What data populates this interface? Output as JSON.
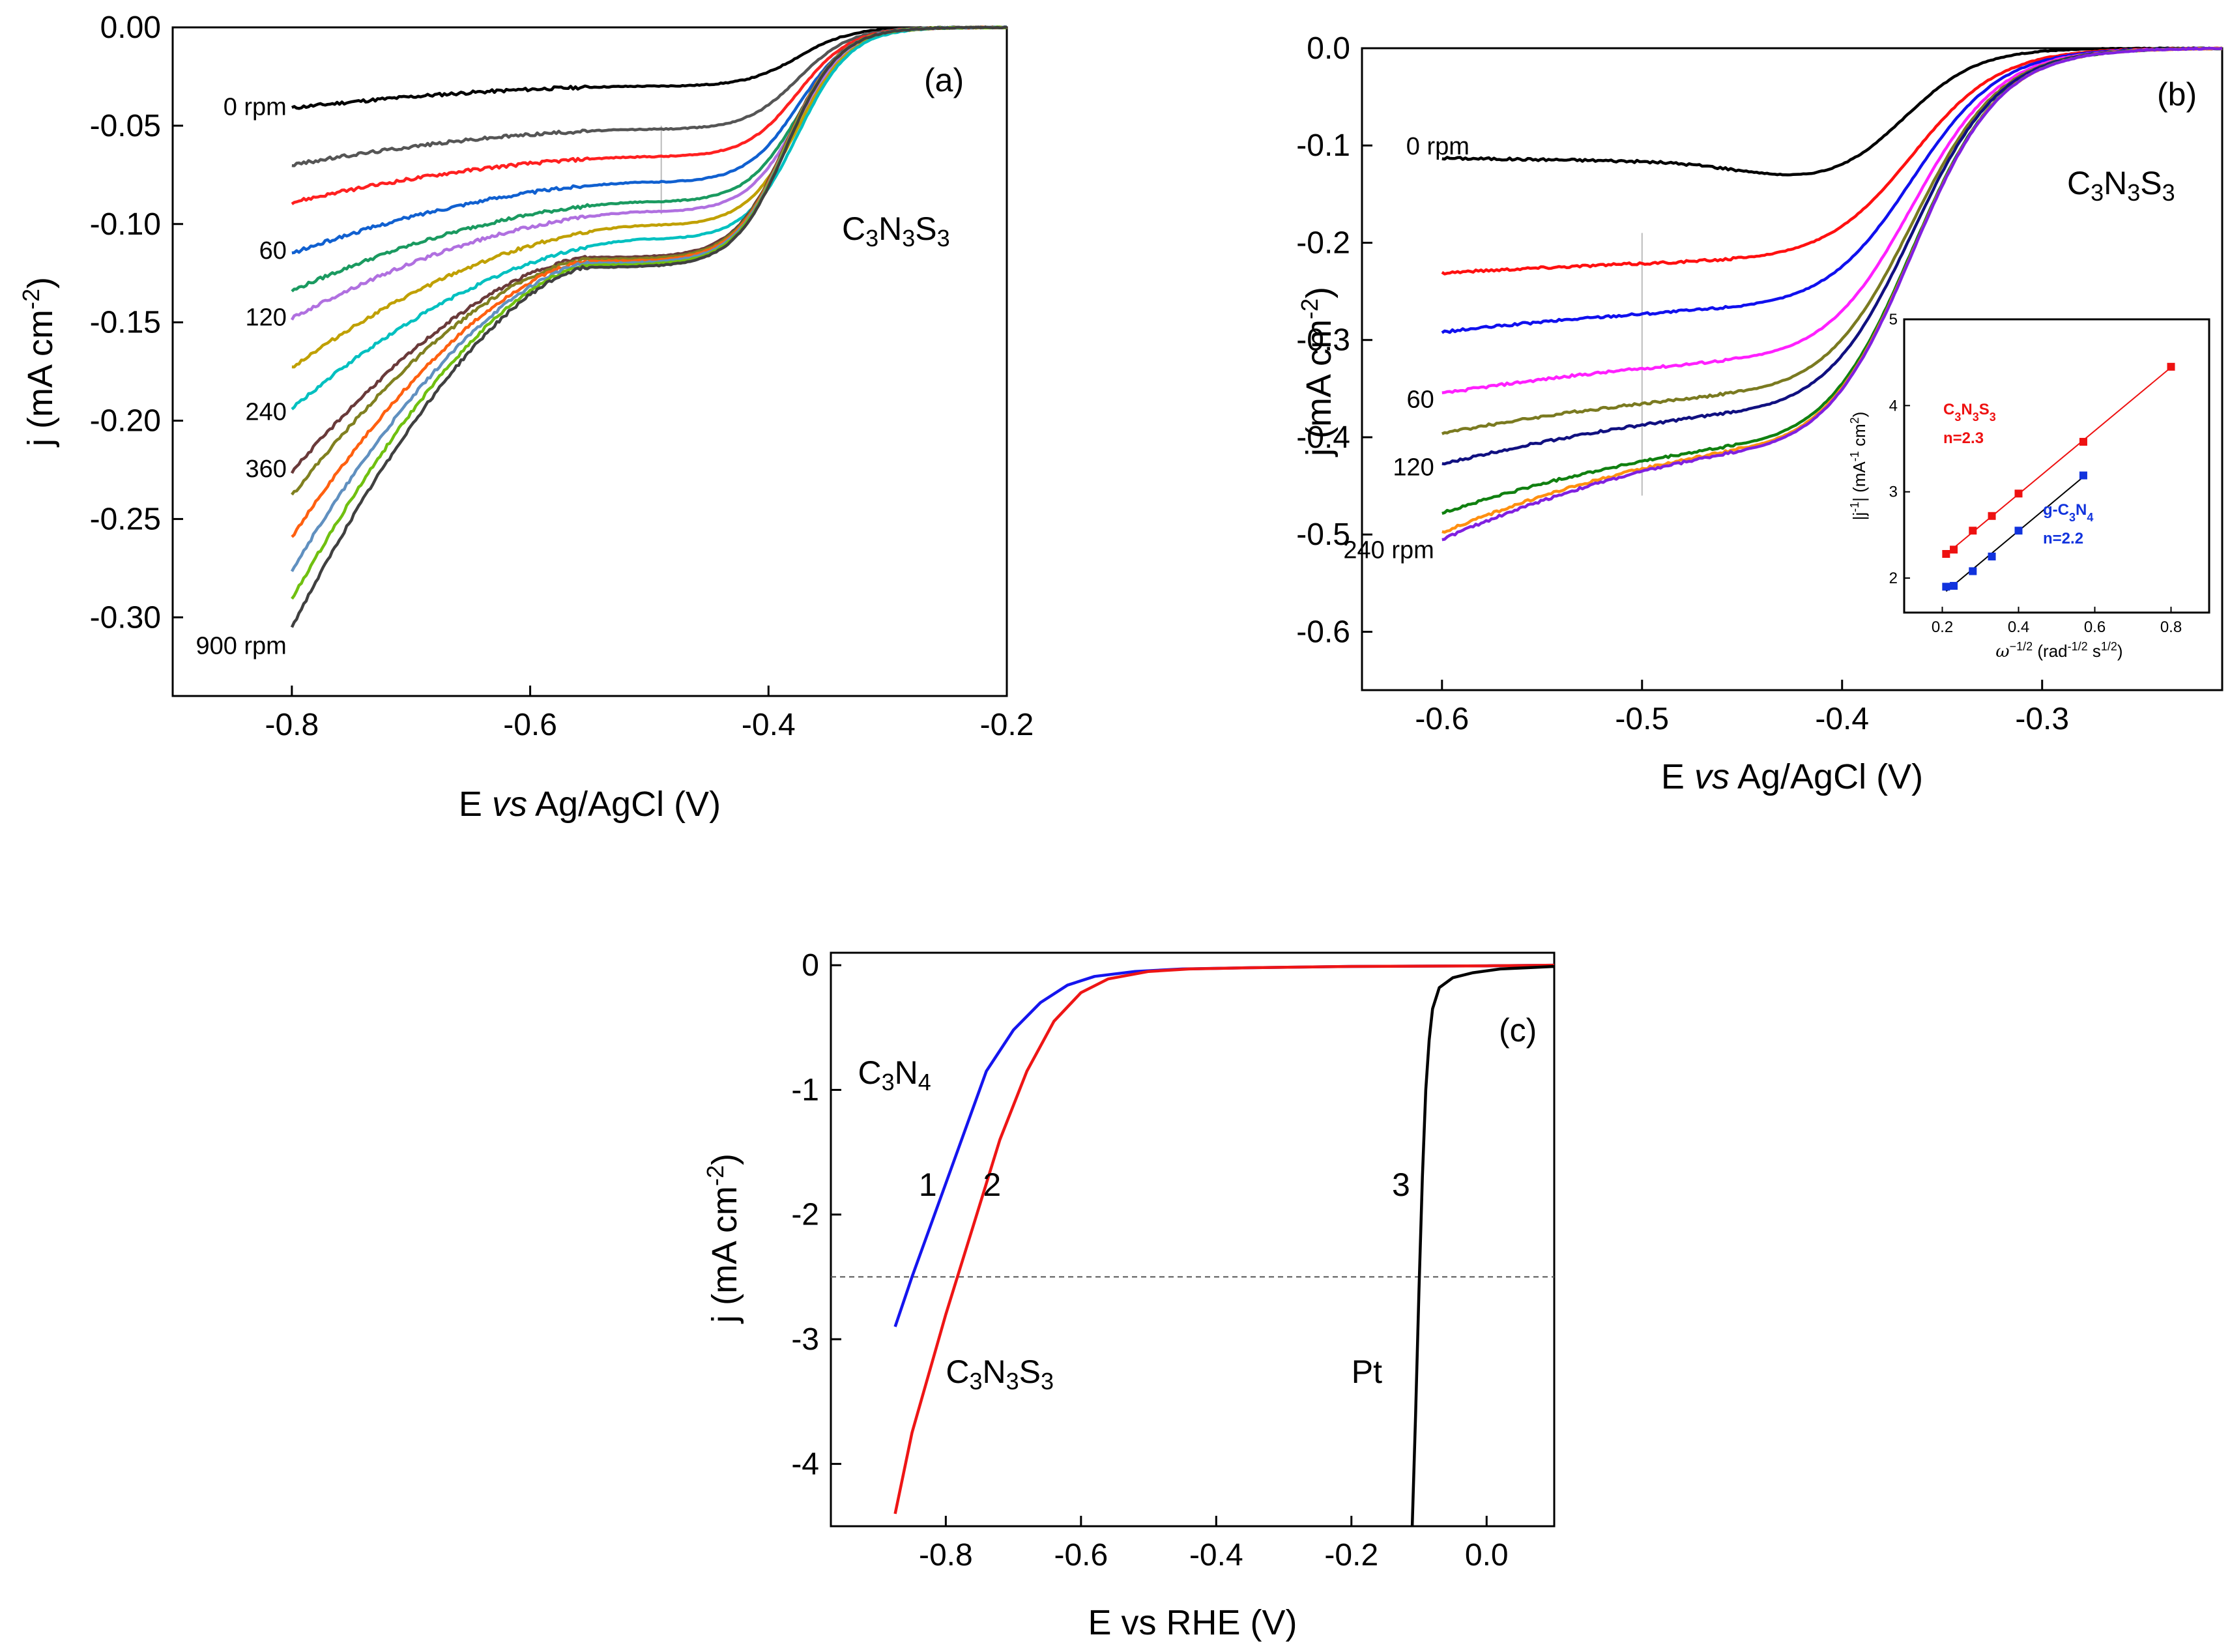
{
  "chart_data": [
    {
      "id": "a",
      "type": "line",
      "panel_label": "(a)",
      "title": "",
      "xlabel_parts": [
        "E ",
        "vs",
        " Ag/AgCl (V)"
      ],
      "ylabel": "j (mA cm",
      "ylabel_sup": "-2",
      "ylabel_close": ")",
      "xlim": [
        -0.9,
        -0.2
      ],
      "ylim": [
        -0.34,
        0.0
      ],
      "xticks": [
        -0.8,
        -0.6,
        -0.4,
        -0.2
      ],
      "xtick_labels": [
        "-0.8",
        "-0.6",
        "-0.4",
        "-0.2"
      ],
      "yticks": [
        0.0,
        -0.05,
        -0.1,
        -0.15,
        -0.2,
        -0.25,
        -0.3
      ],
      "ytick_labels": [
        "0.00",
        "-0.05",
        "-0.10",
        "-0.15",
        "-0.20",
        "-0.25",
        "-0.30"
      ],
      "compound": {
        "parts": [
          "C",
          "3",
          "N",
          "3",
          "S",
          "3"
        ]
      },
      "rpm_labels": [
        {
          "text": "0 rpm",
          "y": -0.04
        },
        {
          "text": "60",
          "y": -0.113
        },
        {
          "text": "120",
          "y": -0.147
        },
        {
          "text": "240",
          "y": -0.195
        },
        {
          "text": "360",
          "y": -0.224
        },
        {
          "text": "900 rpm",
          "y": -0.314
        }
      ],
      "guide_x": -0.49,
      "series": [
        {
          "name": "0 rpm",
          "color": "#000000",
          "start": -0.041,
          "plateau": -0.03,
          "shape": "flat"
        },
        {
          "name": "s2",
          "color": "#555555",
          "start": -0.07,
          "plateau": -0.052,
          "shape": "flat"
        },
        {
          "name": "s3",
          "color": "#ff2020",
          "start": -0.089,
          "plateau": -0.066,
          "shape": "flat"
        },
        {
          "name": "60 rpm",
          "color": "#1060d0",
          "start": -0.115,
          "plateau": -0.079,
          "shape": "flat"
        },
        {
          "name": "s5",
          "color": "#1a9a60",
          "start": -0.134,
          "plateau": -0.089,
          "shape": "flat"
        },
        {
          "name": "120 rpm",
          "color": "#b070e0",
          "start": -0.148,
          "plateau": -0.094,
          "shape": "flat"
        },
        {
          "name": "s7",
          "color": "#c0a000",
          "start": -0.173,
          "plateau": -0.101,
          "shape": "flat"
        },
        {
          "name": "240 rpm",
          "color": "#00c0c0",
          "start": -0.194,
          "plateau": -0.108,
          "shape": "flat"
        },
        {
          "name": "360 rpm",
          "color": "#6a3a3a",
          "start": -0.226,
          "plateau": -0.117,
          "shape": "hump"
        },
        {
          "name": "s10",
          "color": "#808020",
          "start": -0.238,
          "plateau": -0.118,
          "shape": "hump"
        },
        {
          "name": "s11",
          "color": "#ff6010",
          "start": -0.259,
          "plateau": -0.119,
          "shape": "hump"
        },
        {
          "name": "s12",
          "color": "#6090c0",
          "start": -0.276,
          "plateau": -0.12,
          "shape": "hump"
        },
        {
          "name": "s13",
          "color": "#70c010",
          "start": -0.291,
          "plateau": -0.121,
          "shape": "hump"
        },
        {
          "name": "900 rpm",
          "color": "#404040",
          "start": -0.305,
          "plateau": -0.122,
          "shape": "hump"
        }
      ]
    },
    {
      "id": "b",
      "type": "line",
      "panel_label": "(b)",
      "title": "",
      "xlabel_parts": [
        "E ",
        "vs",
        " Ag/AgCl (V)"
      ],
      "ylabel": "j (mA cm",
      "ylabel_sup": "-2",
      "ylabel_close": ")",
      "xlim": [
        -0.64,
        -0.21
      ],
      "ylim": [
        -0.66,
        0.0
      ],
      "xticks": [
        -0.6,
        -0.5,
        -0.4,
        -0.3
      ],
      "xtick_labels": [
        "-0.6",
        "-0.5",
        "-0.4",
        "-0.3"
      ],
      "yticks": [
        0.0,
        -0.1,
        -0.2,
        -0.3,
        -0.4,
        -0.5,
        -0.6
      ],
      "ytick_labels": [
        "0.0",
        "-0.1",
        "-0.2",
        "-0.3",
        "-0.4",
        "-0.5",
        "-0.6"
      ],
      "compound": {
        "parts": [
          "C",
          "3",
          "N",
          "3",
          "S",
          "3"
        ]
      },
      "rpm_labels": [
        {
          "text": "0 rpm",
          "y": -0.1
        },
        {
          "text": "60",
          "y": -0.36
        },
        {
          "text": "120",
          "y": -0.43
        },
        {
          "text": "240 rpm",
          "y": -0.515
        }
      ],
      "guide_x": -0.5,
      "series": [
        {
          "name": "0 rpm",
          "color": "#000000",
          "start": -0.113,
          "plateau": -0.13
        },
        {
          "name": "s2",
          "color": "#ff1010",
          "start": -0.231,
          "plateau": -0.22
        },
        {
          "name": "s3",
          "color": "#1010ee",
          "start": -0.292,
          "plateau": -0.27
        },
        {
          "name": "60 rpm",
          "color": "#ff20ff",
          "start": -0.355,
          "plateau": -0.325
        },
        {
          "name": "s5",
          "color": "#7a7a20",
          "start": -0.396,
          "plateau": -0.36
        },
        {
          "name": "120 rpm",
          "color": "#101080",
          "start": -0.428,
          "plateau": -0.38
        },
        {
          "name": "s7",
          "color": "#108010",
          "start": -0.478,
          "plateau": -0.415
        },
        {
          "name": "s8",
          "color": "#ff9010",
          "start": -0.498,
          "plateau": -0.42
        },
        {
          "name": "240 rpm",
          "color": "#8020e0",
          "start": -0.505,
          "plateau": -0.422
        }
      ],
      "inset": {
        "type": "scatter",
        "xlabel": "ω",
        "xlabel_sup": "−1/2",
        "xlabel_rest": " (rad",
        "xlabel_sup2": "-1/2",
        "xlabel_rest2": " s",
        "xlabel_sup3": "1/2",
        "xlabel_close": ")",
        "ylabel": "|j",
        "ylabel_sup": "-1",
        "ylabel_mid": "| (mA",
        "ylabel_sup2": "-1",
        "ylabel_mid2": " cm",
        "ylabel_sup3": "2",
        "ylabel_close": ")",
        "xlim": [
          0.1,
          0.9
        ],
        "ylim": [
          1.6,
          5.0
        ],
        "xticks": [
          0.2,
          0.4,
          0.6,
          0.8
        ],
        "xtick_labels": [
          "0.2",
          "0.4",
          "0.6",
          "0.8"
        ],
        "yticks": [
          2,
          3,
          4,
          5
        ],
        "ytick_labels": [
          "2",
          "3",
          "4",
          "5"
        ],
        "series": [
          {
            "name": "C3N3S3",
            "label_parts": [
              "C",
              "3",
              "N",
              "3",
              "S",
              "3"
            ],
            "n_text": "n=2.3",
            "color": "#ee1111",
            "x": [
              0.21,
              0.23,
              0.28,
              0.33,
              0.4,
              0.57,
              0.8
            ],
            "y": [
              2.28,
              2.33,
              2.55,
              2.72,
              2.98,
              3.58,
              4.45
            ]
          },
          {
            "name": "g-C3N4",
            "label_parts": [
              "g-C",
              "3",
              "N",
              "4"
            ],
            "n_text": "n=2.2",
            "color": "#1133dd",
            "x": [
              0.21,
              0.23,
              0.28,
              0.33,
              0.4,
              0.57
            ],
            "y": [
              1.9,
              1.91,
              2.08,
              2.25,
              2.55,
              3.19
            ]
          }
        ]
      }
    },
    {
      "id": "c",
      "type": "line",
      "panel_label": "(c)",
      "title": "",
      "xlabel": "E vs RHE (V)",
      "ylabel": "j (mA cm",
      "ylabel_sup": "-2",
      "ylabel_close": ")",
      "xlim": [
        -0.97,
        0.1
      ],
      "ylim": [
        -4.5,
        0.1
      ],
      "xticks": [
        -0.8,
        -0.6,
        -0.4,
        -0.2,
        0.0
      ],
      "xtick_labels": [
        "-0.8",
        "-0.6",
        "-0.4",
        "-0.2",
        "0.0"
      ],
      "yticks": [
        0,
        -1,
        -2,
        -3,
        -4
      ],
      "ytick_labels": [
        "0",
        "-1",
        "-2",
        "-3",
        "-4"
      ],
      "reference_line_y": -2.5,
      "annotations": [
        {
          "parts": [
            "C",
            "3",
            "N",
            "4"
          ],
          "x": -0.93,
          "y": -0.95
        },
        {
          "text": "1",
          "x": -0.84,
          "y": -1.85
        },
        {
          "text": "2",
          "x": -0.745,
          "y": -1.85
        },
        {
          "text": "3",
          "x": -0.14,
          "y": -1.85
        },
        {
          "parts": [
            "C",
            "3",
            "N",
            "3",
            "S",
            "3"
          ],
          "x": -0.8,
          "y": -3.35
        },
        {
          "text": "Pt",
          "x": -0.2,
          "y": -3.35
        }
      ],
      "series": [
        {
          "name": "1 C3N4",
          "color": "#1515ee",
          "x": [
            -0.875,
            -0.85,
            -0.8,
            -0.77,
            -0.74,
            -0.7,
            -0.66,
            -0.62,
            -0.58,
            -0.52,
            -0.45,
            -0.35,
            -0.2,
            0.0,
            0.1
          ],
          "y": [
            -2.9,
            -2.5,
            -1.75,
            -1.3,
            -0.85,
            -0.52,
            -0.3,
            -0.16,
            -0.09,
            -0.05,
            -0.03,
            -0.02,
            -0.01,
            -0.005,
            0.0
          ]
        },
        {
          "name": "2 C3N3S3",
          "color": "#ee1515",
          "x": [
            -0.875,
            -0.85,
            -0.8,
            -0.76,
            -0.72,
            -0.68,
            -0.64,
            -0.6,
            -0.56,
            -0.5,
            -0.44,
            -0.35,
            -0.2,
            0.0,
            0.1
          ],
          "y": [
            -4.4,
            -3.75,
            -2.8,
            -2.1,
            -1.4,
            -0.85,
            -0.45,
            -0.22,
            -0.11,
            -0.05,
            -0.03,
            -0.02,
            -0.01,
            -0.005,
            0.0
          ]
        },
        {
          "name": "3 Pt",
          "color": "#000000",
          "x": [
            -0.11,
            -0.105,
            -0.1,
            -0.095,
            -0.09,
            -0.085,
            -0.08,
            -0.07,
            -0.05,
            -0.02,
            0.02,
            0.06,
            0.1
          ],
          "y": [
            -4.5,
            -3.6,
            -2.6,
            -1.7,
            -1.0,
            -0.6,
            -0.35,
            -0.18,
            -0.1,
            -0.06,
            -0.03,
            -0.02,
            -0.01
          ]
        }
      ]
    }
  ]
}
